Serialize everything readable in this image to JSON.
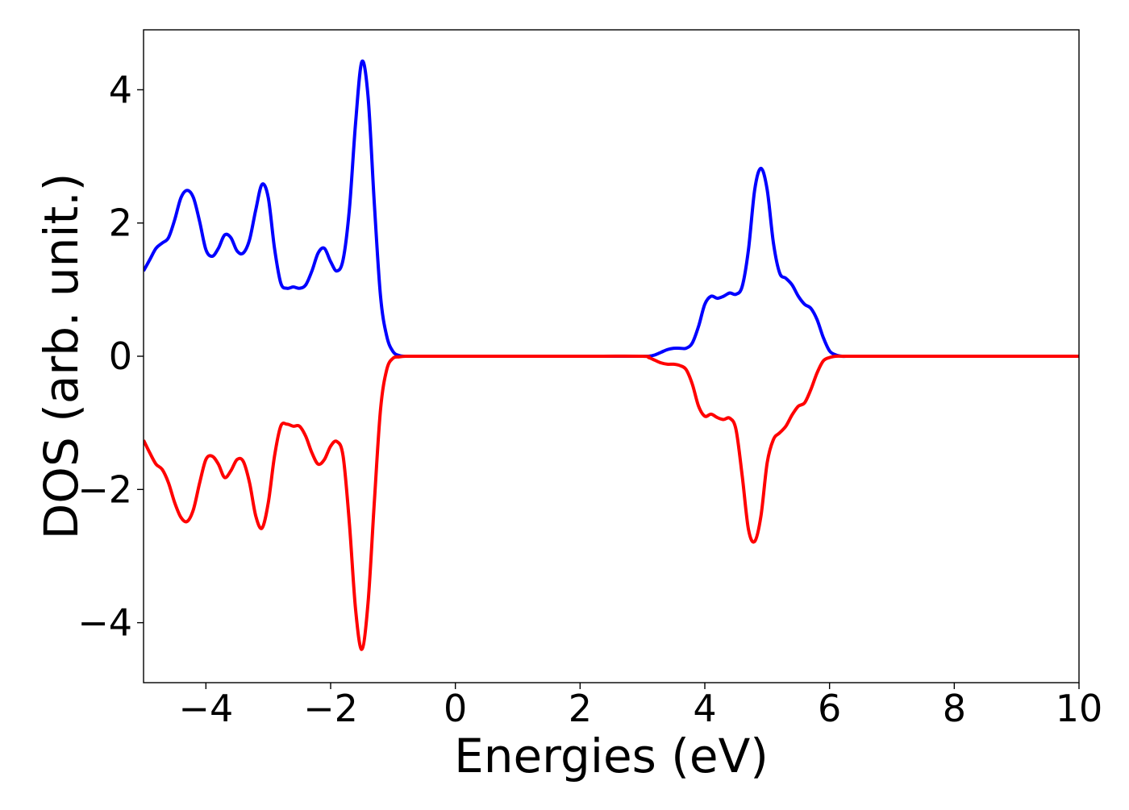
{
  "chart_data": {
    "type": "line",
    "title": "",
    "xlabel": "Energies (eV)",
    "ylabel": "DOS (arb. unit.)",
    "xlim": [
      -5,
      10
    ],
    "ylim": [
      -4.9,
      4.9
    ],
    "xticks": [
      -4,
      -2,
      0,
      2,
      4,
      6,
      8,
      10
    ],
    "yticks": [
      -4,
      -2,
      0,
      2,
      4
    ],
    "xtick_labels": [
      "−4",
      "−2",
      "0",
      "2",
      "4",
      "6",
      "8",
      "10"
    ],
    "ytick_labels": [
      "−4",
      "−2",
      "0",
      "2",
      "4"
    ],
    "grid": false,
    "legend": "none",
    "x": [
      -5.0,
      -4.9,
      -4.8,
      -4.7,
      -4.6,
      -4.5,
      -4.4,
      -4.3,
      -4.2,
      -4.1,
      -4.0,
      -3.9,
      -3.8,
      -3.7,
      -3.6,
      -3.5,
      -3.4,
      -3.3,
      -3.2,
      -3.1,
      -3.0,
      -2.9,
      -2.8,
      -2.7,
      -2.6,
      -2.5,
      -2.4,
      -2.3,
      -2.2,
      -2.1,
      -2.0,
      -1.9,
      -1.8,
      -1.7,
      -1.6,
      -1.5,
      -1.4,
      -1.3,
      -1.2,
      -1.1,
      -1.0,
      -0.9,
      -0.8,
      -0.7,
      -0.6,
      -0.5,
      -0.4,
      0.0,
      1.0,
      2.0,
      3.0,
      3.1,
      3.2,
      3.3,
      3.4,
      3.5,
      3.6,
      3.7,
      3.8,
      3.9,
      4.0,
      4.1,
      4.2,
      4.3,
      4.4,
      4.5,
      4.6,
      4.7,
      4.8,
      4.9,
      5.0,
      5.1,
      5.2,
      5.3,
      5.4,
      5.5,
      5.6,
      5.7,
      5.8,
      5.9,
      6.0,
      6.1,
      6.2,
      6.3,
      6.4,
      6.5,
      6.6,
      6.8,
      7.0,
      8.0,
      9.0,
      10.0
    ],
    "series": [
      {
        "color": "#0000ff",
        "values": [
          1.28,
          1.45,
          1.62,
          1.7,
          1.78,
          2.05,
          2.38,
          2.49,
          2.38,
          2.02,
          1.6,
          1.5,
          1.62,
          1.82,
          1.78,
          1.58,
          1.55,
          1.75,
          2.2,
          2.58,
          2.38,
          1.62,
          1.1,
          1.02,
          1.04,
          1.02,
          1.07,
          1.28,
          1.55,
          1.62,
          1.42,
          1.28,
          1.45,
          2.2,
          3.5,
          4.42,
          3.9,
          2.3,
          0.9,
          0.3,
          0.07,
          0.01,
          0.0,
          0.0,
          0.0,
          0.0,
          0.0,
          0.0,
          0.0,
          0.0,
          0.0,
          0.0,
          0.02,
          0.06,
          0.1,
          0.12,
          0.12,
          0.12,
          0.2,
          0.45,
          0.78,
          0.9,
          0.87,
          0.9,
          0.95,
          0.93,
          1.05,
          1.6,
          2.5,
          2.82,
          2.5,
          1.7,
          1.25,
          1.17,
          1.07,
          0.9,
          0.78,
          0.72,
          0.55,
          0.28,
          0.08,
          0.02,
          0.0,
          0.0,
          0.0,
          0.0,
          0.0,
          0.0,
          0.0,
          0.0,
          0.0,
          0.0
        ]
      },
      {
        "color": "#ff0000",
        "values": [
          -1.26,
          -1.45,
          -1.62,
          -1.7,
          -1.9,
          -2.2,
          -2.42,
          -2.48,
          -2.3,
          -1.9,
          -1.55,
          -1.5,
          -1.62,
          -1.82,
          -1.72,
          -1.55,
          -1.58,
          -1.9,
          -2.4,
          -2.58,
          -2.2,
          -1.5,
          -1.05,
          -1.02,
          -1.05,
          -1.05,
          -1.2,
          -1.45,
          -1.62,
          -1.55,
          -1.35,
          -1.28,
          -1.5,
          -2.5,
          -3.8,
          -4.4,
          -3.7,
          -2.2,
          -0.8,
          -0.2,
          -0.03,
          -0.01,
          0.0,
          0.0,
          0.0,
          0.0,
          0.0,
          0.0,
          0.0,
          0.0,
          0.0,
          -0.02,
          -0.06,
          -0.1,
          -0.12,
          -0.12,
          -0.14,
          -0.2,
          -0.42,
          -0.75,
          -0.9,
          -0.87,
          -0.92,
          -0.95,
          -0.93,
          -1.1,
          -1.8,
          -2.6,
          -2.78,
          -2.4,
          -1.6,
          -1.25,
          -1.15,
          -1.05,
          -0.88,
          -0.75,
          -0.7,
          -0.5,
          -0.25,
          -0.07,
          -0.02,
          0.0,
          0.0,
          0.0,
          0.0,
          0.0,
          0.0,
          0.0,
          0.0,
          0.0,
          0.0,
          0.0
        ]
      }
    ]
  }
}
